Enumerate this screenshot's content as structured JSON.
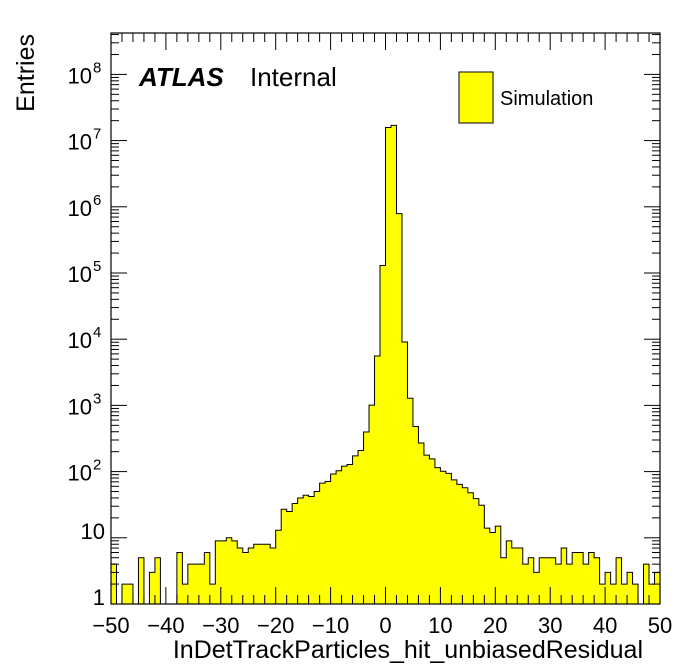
{
  "chart_data": {
    "type": "bar",
    "histogram": true,
    "xlabel": "InDetTrackParticles_hit_unbiasedResidual",
    "ylabel": "Entries",
    "xlim": [
      -50,
      50
    ],
    "ylim": [
      1,
      250000000
    ],
    "yscale": "log",
    "bin_width": 1,
    "x_ticks": [
      "−50",
      "−40",
      "−30",
      "−20",
      "−10",
      "0",
      "10",
      "20",
      "30",
      "40",
      "50"
    ],
    "y_ticks": [
      "1",
      "10",
      "10^2",
      "10^3",
      "10^4",
      "10^5",
      "10^6",
      "10^7",
      "10^8"
    ],
    "grid": false,
    "legend": {
      "position": "top-right",
      "entries": [
        "Simulation"
      ]
    },
    "annotations": {
      "atlas_label": "ATLAS",
      "status_label": "Internal"
    },
    "fill_color": "#ffff00",
    "edge_color": "#000000",
    "series": [
      {
        "name": "Simulation",
        "x_edges_start": -50,
        "values": [
          4,
          1,
          2,
          2,
          1,
          5,
          1,
          3,
          5,
          1,
          1,
          1,
          6,
          2,
          4,
          4,
          4,
          6,
          2,
          9,
          9,
          10,
          9,
          7,
          6,
          7,
          8,
          8,
          8,
          7,
          13,
          27,
          25,
          33,
          40,
          44,
          42,
          50,
          67,
          71,
          92,
          103,
          121,
          128,
          173,
          208,
          397,
          1010,
          5580,
          130000,
          15800000,
          17000000,
          790000,
          9070,
          1280,
          481,
          270,
          177,
          156,
          115,
          101,
          94,
          75,
          64,
          57,
          48,
          39,
          31,
          14,
          12,
          15,
          5,
          9,
          7,
          7,
          4,
          5,
          3,
          5,
          5,
          5,
          4,
          7,
          4,
          6,
          6,
          4,
          6,
          5,
          2,
          3,
          2,
          5,
          2,
          3,
          2,
          1,
          4,
          2,
          3
        ]
      }
    ]
  }
}
